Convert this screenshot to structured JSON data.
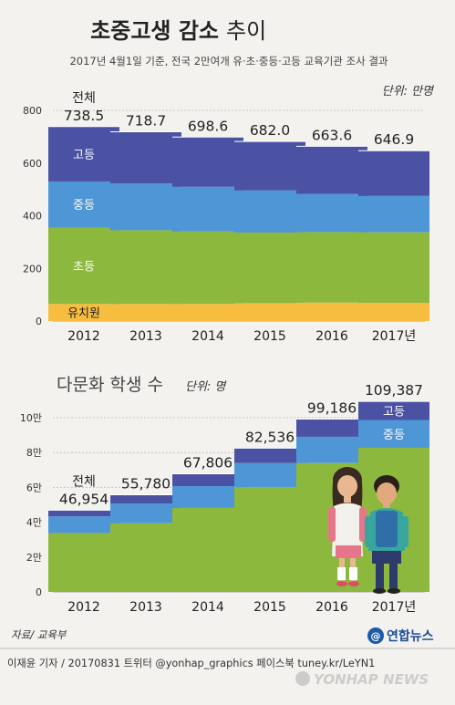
{
  "header": {
    "title_bold": "초중고생 감소",
    "title_light": "추이",
    "subtitle": "2017년 4월1일 기준, 전국 2만여개 유·초·중등·고등 교육기관 조사 결과"
  },
  "chart_data": [
    {
      "type": "bar",
      "stacked": true,
      "unit_label": "단위: 만명",
      "categories": [
        "2012",
        "2013",
        "2014",
        "2015",
        "2016",
        "2017년"
      ],
      "ylim": [
        0,
        800
      ],
      "yticks": [
        0,
        200,
        400,
        600,
        800
      ],
      "grid": true,
      "series": [
        {
          "name": "유치원",
          "color": "#f6bd3f",
          "values": [
            65,
            65,
            65,
            68,
            70,
            69
          ]
        },
        {
          "name": "초등",
          "color": "#8cb83e",
          "values": [
            290,
            280,
            275,
            268,
            268,
            268
          ]
        },
        {
          "name": "중등",
          "color": "#4f96d6",
          "values": [
            175,
            178,
            170,
            160,
            145,
            138
          ]
        },
        {
          "name": "고등",
          "color": "#4b52a4",
          "values": [
            208.5,
            195.7,
            188.6,
            186.0,
            180.6,
            171.9
          ]
        }
      ],
      "total_label": "전체",
      "totals": [
        "738.5",
        "718.7",
        "698.6",
        "682.0",
        "663.6",
        "646.9"
      ]
    },
    {
      "type": "bar",
      "stacked": true,
      "title": "다문화 학생 수",
      "unit_label": "단위: 명",
      "categories": [
        "2012",
        "2013",
        "2014",
        "2015",
        "2016",
        "2017년"
      ],
      "ylim": [
        0,
        100000
      ],
      "yticks": [
        0,
        20000,
        40000,
        60000,
        80000,
        100000
      ],
      "ytick_labels": [
        "0",
        "2만",
        "4만",
        "6만",
        "8만",
        "10만"
      ],
      "grid": true,
      "series": [
        {
          "name": "초등",
          "color": "#8cb83e",
          "values": [
            33740,
            39430,
            48225,
            60162,
            73972,
            82733
          ]
        },
        {
          "name": "중등",
          "color": "#4f96d6",
          "values": [
            9627,
            11317,
            12506,
            13827,
            15080,
            15945
          ]
        },
        {
          "name": "고등",
          "color": "#4b52a4",
          "values": [
            3587,
            5033,
            7075,
            8547,
            10134,
            10709
          ]
        }
      ],
      "total_label": "전체",
      "totals": [
        "46,954",
        "55,780",
        "67,806",
        "82,536",
        "99,186",
        "109,387"
      ]
    }
  ],
  "footer": {
    "source": "자료/ 교육부",
    "logo": "연합뉴스",
    "credit": "이재윤 기자 / 20170831  트위터 @yonhap_graphics  페이스북 tuney.kr/LeYN1",
    "watermark": "YONHAP NEWS"
  }
}
